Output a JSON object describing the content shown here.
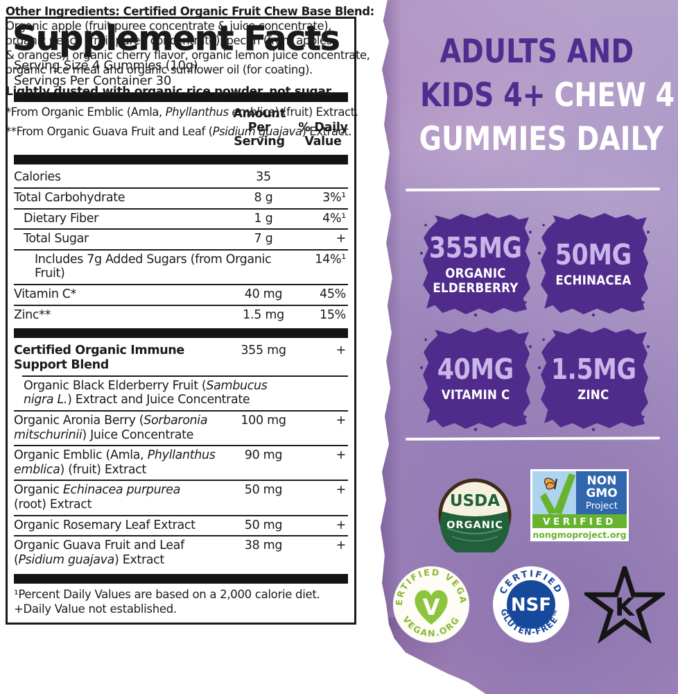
{
  "colors": {
    "panel_base": "#a791c2",
    "badge": "#4f2b8b",
    "heading_purple": "#4f2d8f",
    "value_text": "#c9b5e8",
    "usda_green": "#20603a",
    "usda_cream": "#f6f1df",
    "usda_ring": "#402a18",
    "nongmo_blue": "#2f66ad",
    "nongmo_sky": "#aed3ee",
    "nongmo_green": "#67b32e",
    "vegan_green": "#8bb832",
    "vegan_heart": "#8cc43c",
    "nsf_navy": "#16489c",
    "ink": "#1a1a1a"
  },
  "facts": {
    "title": "Supplement Facts",
    "serving_size": "Serving Size 4 Gummies (10g)",
    "servings": "Servings Per Container 30",
    "col_amount": "Amount Per\nServing",
    "col_dv": "% Daily\nValue",
    "rows": [
      {
        "name": "Calories",
        "amount": "35",
        "dv": ""
      },
      {
        "name": "Total Carbohydrate",
        "amount": "8 g",
        "dv": "3%¹"
      },
      {
        "name": "Dietary Fiber",
        "amount": "1 g",
        "dv": "4%¹"
      },
      {
        "name": "Total Sugar",
        "amount": "7 g",
        "dv": "+"
      },
      {
        "name": "Includes 7g Added Sugars (from Organic Fruit)",
        "amount": "",
        "dv": "14%¹"
      },
      {
        "name": "Vitamin C*",
        "amount": "40 mg",
        "dv": "45%"
      },
      {
        "name": "Zinc**",
        "amount": "1.5 mg",
        "dv": "15%"
      },
      {
        "name": "Certified Organic Immune\nSupport Blend",
        "amount": "355 mg",
        "dv": "+"
      },
      {
        "name": "Organic Black Elderberry Fruit (<i>Sambucus\nnigra L.</i>) Extract and Juice Concentrate",
        "amount": "",
        "dv": ""
      },
      {
        "name": "Organic Aronia Berry (<i>Sorbaronia\nmitschurinii</i>) Juice Concentrate",
        "amount": "100 mg",
        "dv": "+"
      },
      {
        "name": "Organic Emblic (Amla, <i>Phyllanthus\nemblica</i>) (fruit) Extract",
        "amount": "90 mg",
        "dv": "+"
      },
      {
        "name": "Organic <i>Echinacea purpurea</i>\n(root) Extract",
        "amount": "50 mg",
        "dv": "+"
      },
      {
        "name": "Organic Rosemary Leaf Extract",
        "amount": "50 mg",
        "dv": "+"
      },
      {
        "name": "Organic Guava Fruit and Leaf\n(<i>Psidium guajava</i>) Extract",
        "amount": "38 mg",
        "dv": "+"
      }
    ],
    "footnotes": "¹Percent Daily Values are based on a 2,000 calorie diet.\n+Daily Value not established."
  },
  "bottom": {
    "other_ingredients": "<b>Other Ingredients: Certified Organic Fruit Chew Base Blend:</b>\nOrganic apple (fruit puree concentrate &amp; juice concentrate),\norganic peach (fruit puree concentrate), pectin (from apples\n&amp; oranges), organic cherry flavor, organic lemon juice concentrate,\norganic rice meal and organic sunflower oil (for coating).",
    "dusted": "Lightly dusted with organic rice powder, not sugar.",
    "note1": "*From Organic Emblic (Amla, <i>Phyllanthus emblica</i>) (fruit) Extract.",
    "note2": "**From Organic Guava Fruit and Leaf (<i>Psidium guajava</i>) Extract."
  },
  "panel": {
    "heading": {
      "line1": "ADULTS AND",
      "line2_purple": "KIDS 4+",
      "line2_white": "CHEW 4",
      "line3": "GUMMIES DAILY"
    },
    "badges": [
      {
        "value": "355MG",
        "label": "ORGANIC\nELDERBERRY"
      },
      {
        "value": "50MG",
        "label": "ECHINACEA"
      },
      {
        "value": "40MG",
        "label": "VITAMIN C"
      },
      {
        "value": "1.5MG",
        "label": "ZINC"
      }
    ],
    "seals": {
      "usda": {
        "top": "USDA",
        "bottom": "ORGANIC"
      },
      "nongmo": {
        "word1": "NON",
        "word2": "GMO",
        "word3": "Project",
        "band": "VERIFIED",
        "url": "nongmoproject.org"
      },
      "vegan": {
        "arc_top": "CERTIFIED VEGAN",
        "arc_bottom": "VEGAN.ORG",
        "letter": "V"
      },
      "nsf": {
        "arc_top": "CERTIFIED",
        "center": "NSF",
        "arc_bottom": "GLUTEN-FREE™"
      },
      "kosher": {
        "letter": "K"
      }
    }
  }
}
